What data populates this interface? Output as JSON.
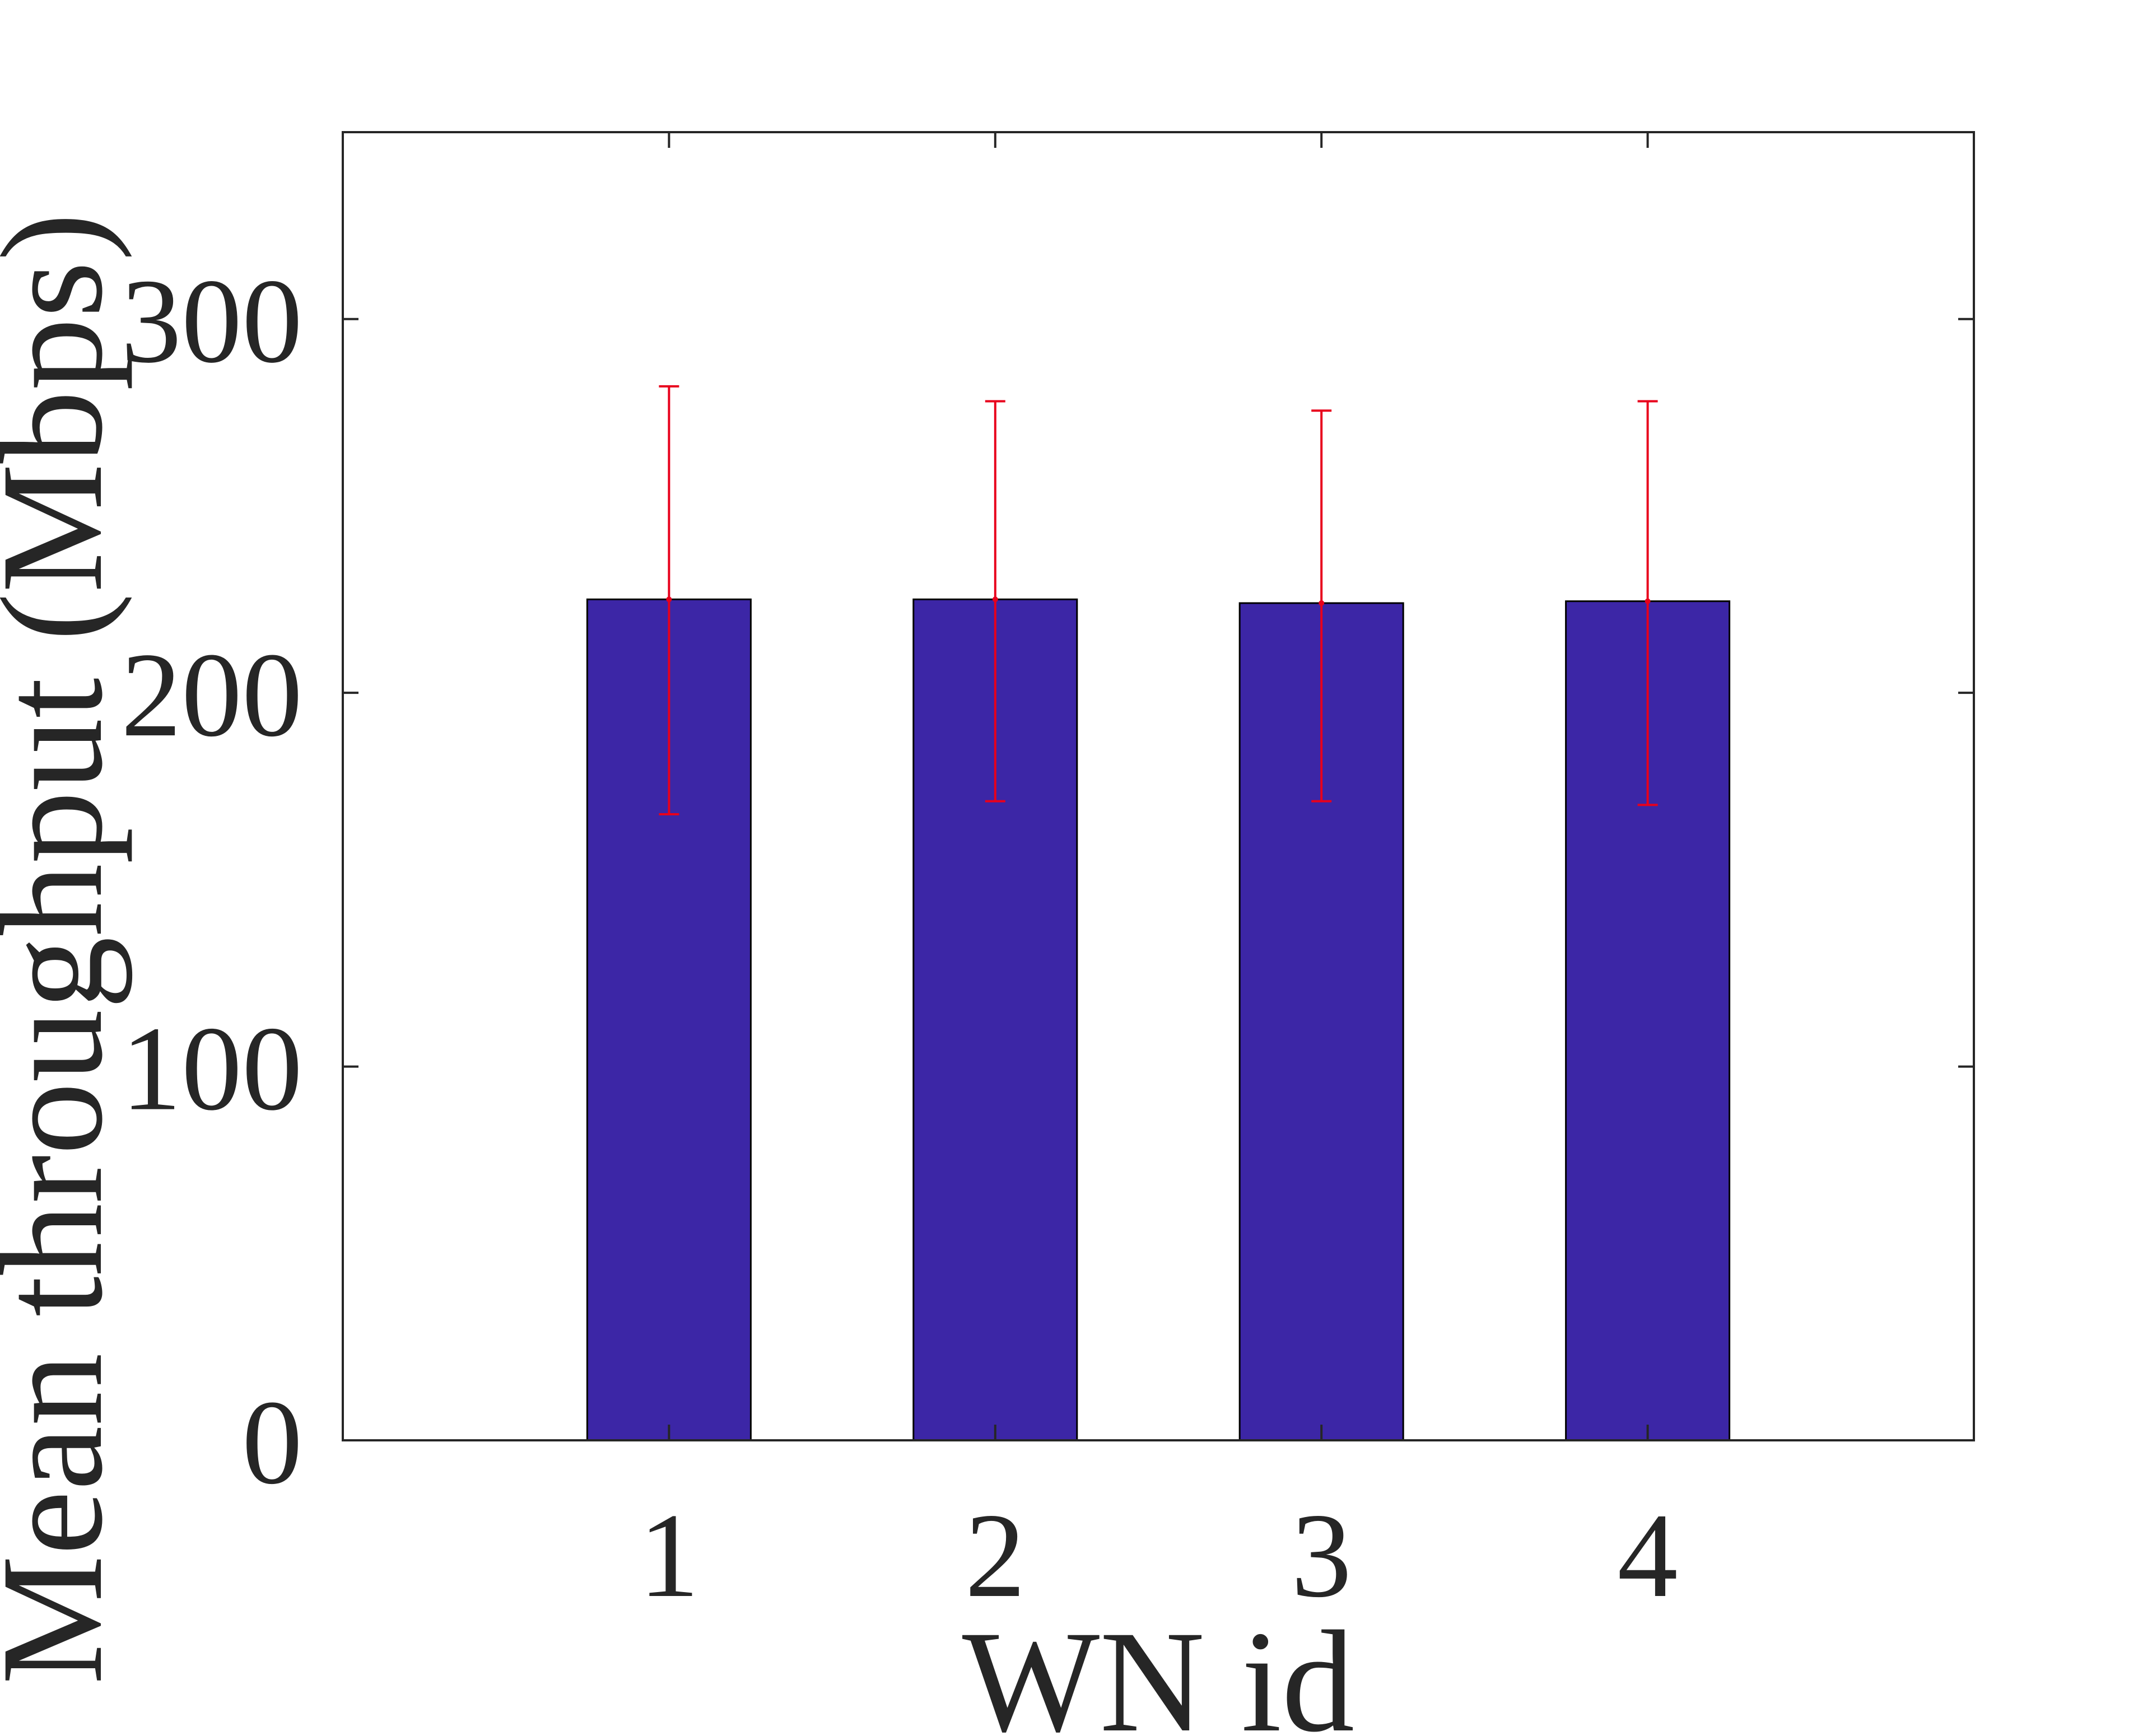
{
  "chart_data": {
    "type": "bar",
    "title": "",
    "xlabel": "WN id",
    "ylabel": "Mean throughput (Mbps)",
    "categories": [
      "1",
      "2",
      "3",
      "4"
    ],
    "values": [
      225,
      225,
      224,
      224.5
    ],
    "error_bars": {
      "lower": [
        167.5,
        171,
        171,
        170
      ],
      "upper": [
        282,
        278,
        275.5,
        278
      ]
    },
    "ylim": [
      0,
      350
    ],
    "yticks": [
      0,
      100,
      200,
      300
    ],
    "ytick_labels": [
      "0",
      "100",
      "200",
      "300"
    ],
    "xlim": [
      0,
      5
    ],
    "grid": false,
    "legend": "none",
    "colors": {
      "bar": "#3c26a6",
      "bar_edge": "#000000",
      "error_bar": "#e8001c",
      "axis": "#262626",
      "text": "#262626"
    }
  }
}
